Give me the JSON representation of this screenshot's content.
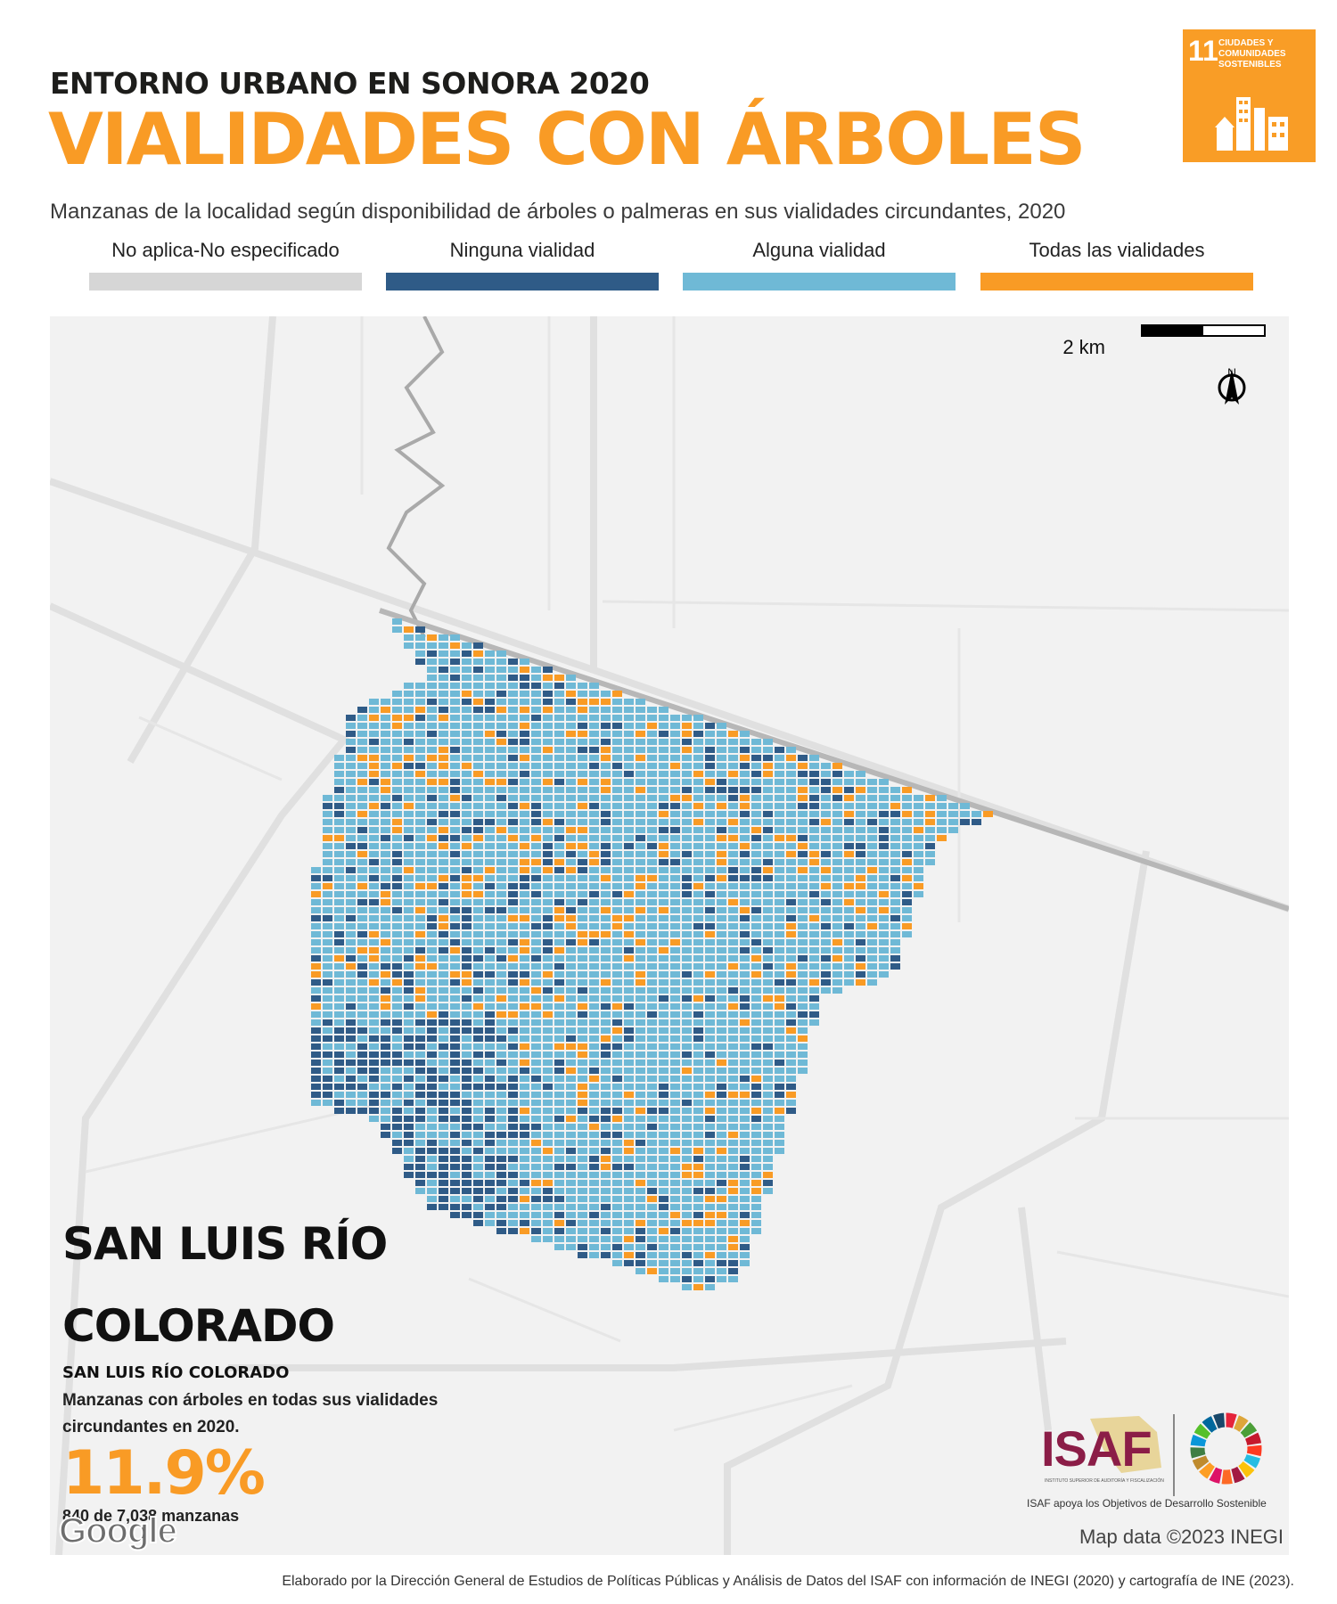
{
  "header": {
    "kicker": "ENTORNO URBANO EN SONORA 2020",
    "title": "VIALIDADES CON ÁRBOLES",
    "subtitle": "Manzanas de la localidad según disponibilidad de árboles o palmeras en sus vialidades circundantes, 2020"
  },
  "sdg_badge": {
    "number": "11",
    "text": "CIUDADES Y COMUNIDADES SOSTENIBLES",
    "color": "#f99d26"
  },
  "legend": [
    {
      "label": "No aplica-No especificado",
      "color": "#d6d6d6"
    },
    {
      "label": "Ninguna vialidad",
      "color": "#2f5b87"
    },
    {
      "label": "Alguna vialidad",
      "color": "#6fb9d6"
    },
    {
      "label": "Todas las vialidades",
      "color": "#f99b25"
    }
  ],
  "map": {
    "scale_label": "2 km",
    "north_label": "N",
    "google_logo": "Google",
    "attribution": "Map data ©2023 INEGI",
    "colors": {
      "ninguna": "#2f5b87",
      "alguna": "#6fb9d6",
      "todas": "#f99b25",
      "background": "#f2f2f2",
      "roads": "#d9d9d9"
    }
  },
  "city_panel": {
    "name": "SAN LUIS RÍO COLORADO",
    "locality": "SAN LUIS RÍO COLORADO",
    "description": "Manzanas con árboles en todas sus vialidades circundantes en 2020.",
    "percentage": "11.9%",
    "count": "840 de 7,038 manzanas"
  },
  "logos": {
    "isaf": "ISAF",
    "isaf_fullname": "INSTITUTO SUPERIOR DE AUDITORÍA Y FISCALIZACIÓN",
    "slogan": "ISAF apoya los Objetivos de Desarrollo Sostenible"
  },
  "footer": "Elaborado por la Dirección General de Estudios de Políticas Públicas y Análisis de Datos del ISAF con información de INEGI (2020) y cartografía de INE (2023)."
}
